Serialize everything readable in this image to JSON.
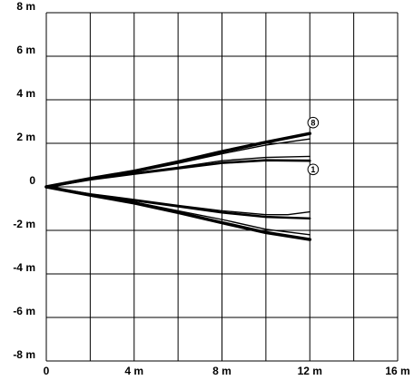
{
  "chart_data": {
    "type": "line",
    "title": "",
    "xlabel": "",
    "ylabel": "",
    "xlim": [
      0,
      16
    ],
    "ylim": [
      -8,
      8
    ],
    "grid": true,
    "x_ticks": [
      0,
      2,
      4,
      6,
      8,
      10,
      12,
      14,
      16
    ],
    "y_ticks": [
      -8,
      -6,
      -4,
      -2,
      0,
      2,
      4,
      6,
      8
    ],
    "x_tick_labels": [
      {
        "value": 0,
        "label": "0"
      },
      {
        "value": 4,
        "label": "4 m"
      },
      {
        "value": 8,
        "label": "8 m"
      },
      {
        "value": 12,
        "label": "12 m"
      },
      {
        "value": 16,
        "label": "16 m"
      }
    ],
    "y_tick_labels": [
      {
        "value": 8,
        "label": "8 m"
      },
      {
        "value": 6,
        "label": "6 m"
      },
      {
        "value": 4,
        "label": "4 m"
      },
      {
        "value": 2,
        "label": "2 m"
      },
      {
        "value": 0,
        "label": "0"
      },
      {
        "value": -2,
        "label": "-2 m"
      },
      {
        "value": -4,
        "label": "-4 m"
      },
      {
        "value": -6,
        "label": "-6 m"
      },
      {
        "value": -8,
        "label": "-8 m"
      }
    ],
    "series": [
      {
        "x": [
          0,
          2,
          4,
          6,
          8,
          10,
          12
        ],
        "y": [
          0,
          0.38,
          0.72,
          1.15,
          1.62,
          2.05,
          2.45
        ],
        "width": 3.5
      },
      {
        "x": [
          0,
          2,
          4,
          6,
          8,
          10,
          12
        ],
        "y": [
          0,
          0.36,
          0.68,
          1.08,
          1.52,
          1.92,
          2.2
        ],
        "width": 1.4
      },
      {
        "x": [
          0,
          2,
          4,
          6,
          8,
          10,
          12
        ],
        "y": [
          0,
          0.35,
          0.64,
          0.9,
          1.2,
          1.35,
          1.4
        ],
        "width": 1.4
      },
      {
        "x": [
          0,
          2,
          4,
          6,
          8,
          10,
          12
        ],
        "y": [
          0,
          0.34,
          0.6,
          0.85,
          1.1,
          1.22,
          1.2
        ],
        "width": 2.6
      },
      {
        "x": [
          0,
          2,
          4,
          6,
          8,
          10,
          11,
          12
        ],
        "y": [
          0,
          -0.32,
          -0.58,
          -0.85,
          -1.1,
          -1.28,
          -1.28,
          -1.15
        ],
        "width": 1.4
      },
      {
        "x": [
          0,
          2,
          4,
          6,
          8,
          10,
          12
        ],
        "y": [
          0,
          -0.35,
          -0.62,
          -0.9,
          -1.18,
          -1.38,
          -1.45
        ],
        "width": 2.4
      },
      {
        "x": [
          0,
          2,
          4,
          6,
          8,
          10,
          12
        ],
        "y": [
          0,
          -0.36,
          -0.7,
          -1.1,
          -1.5,
          -1.95,
          -2.2
        ],
        "width": 1.4
      },
      {
        "x": [
          0,
          2,
          4,
          6,
          8,
          10,
          12
        ],
        "y": [
          0,
          -0.38,
          -0.74,
          -1.18,
          -1.65,
          -2.1,
          -2.42
        ],
        "width": 3.5
      }
    ],
    "annotations": [
      {
        "text": "8",
        "x": 12.15,
        "y": 2.95
      },
      {
        "text": "1",
        "x": 12.15,
        "y": 0.8
      }
    ]
  }
}
